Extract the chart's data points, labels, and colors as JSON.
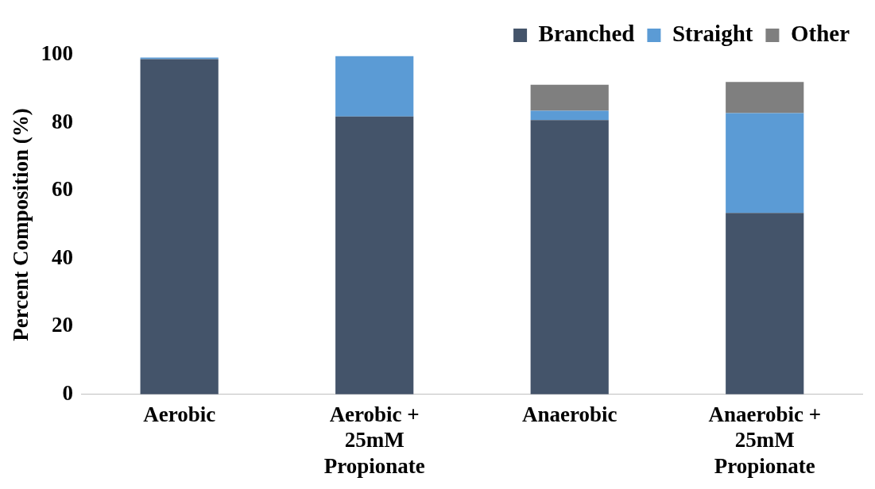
{
  "chart_data": {
    "type": "bar",
    "stacked": true,
    "ylabel": "Percent Composition (%)",
    "categories": [
      "Aerobic",
      "Aerobic + 25mM Propionate",
      "Anaerobic",
      "Anaerobic + 25mM Propionate"
    ],
    "series": [
      {
        "name": "Branched",
        "color": "#44546a",
        "values": [
          98.7,
          81.8,
          80.8,
          53.4
        ]
      },
      {
        "name": "Straight",
        "color": "#5b9bd5",
        "values": [
          0.5,
          17.8,
          2.7,
          29.4
        ]
      },
      {
        "name": "Other",
        "color": "#7f7f7f",
        "values": [
          null,
          null,
          7.7,
          9.2
        ]
      }
    ],
    "ylim": [
      0,
      100
    ],
    "yticks": [
      0,
      20,
      40,
      60,
      80,
      100
    ],
    "grid": false,
    "legend": "top right"
  }
}
